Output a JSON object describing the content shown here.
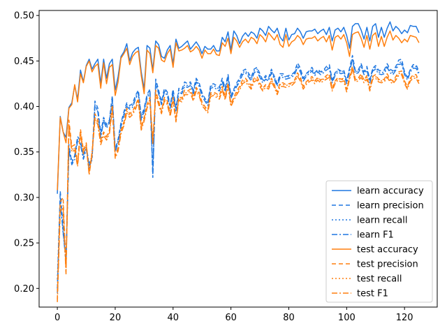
{
  "chart_data": {
    "type": "line",
    "title": "",
    "xlabel": "",
    "ylabel": "",
    "xlim": [
      -6.3,
      131.3
    ],
    "ylim": [
      0.1795,
      0.5055
    ],
    "xticks": [
      "0",
      "20",
      "40",
      "60",
      "80",
      "100",
      "120"
    ],
    "yticks": [
      "0.20",
      "0.25",
      "0.30",
      "0.35",
      "0.40",
      "0.45",
      "0.50"
    ],
    "grid": false,
    "legend_position": "lower-right",
    "x": [
      0,
      1,
      2,
      3,
      4,
      5,
      6,
      7,
      8,
      9,
      10,
      11,
      12,
      13,
      14,
      15,
      16,
      17,
      18,
      19,
      20,
      21,
      22,
      23,
      24,
      25,
      26,
      27,
      28,
      29,
      30,
      31,
      32,
      33,
      34,
      35,
      36,
      37,
      38,
      39,
      40,
      41,
      42,
      43,
      44,
      45,
      46,
      47,
      48,
      49,
      50,
      51,
      52,
      53,
      54,
      55,
      56,
      57,
      58,
      59,
      60,
      61,
      62,
      63,
      64,
      65,
      66,
      67,
      68,
      69,
      70,
      71,
      72,
      73,
      74,
      75,
      76,
      77,
      78,
      79,
      80,
      81,
      82,
      83,
      84,
      85,
      86,
      87,
      88,
      89,
      90,
      91,
      92,
      93,
      94,
      95,
      96,
      97,
      98,
      99,
      100,
      101,
      102,
      103,
      104,
      105,
      106,
      107,
      108,
      109,
      110,
      111,
      112,
      113,
      114,
      115,
      116,
      117,
      118,
      119,
      120,
      121,
      122,
      123,
      124,
      125
    ],
    "series": [
      {
        "name": "learn accuracy",
        "color": "#1f77e0",
        "dash": "solid",
        "values": [
          0.304,
          0.389,
          0.372,
          0.366,
          0.399,
          0.404,
          0.423,
          0.408,
          0.44,
          0.427,
          0.445,
          0.452,
          0.441,
          0.447,
          0.452,
          0.425,
          0.452,
          0.431,
          0.447,
          0.452,
          0.418,
          0.433,
          0.455,
          0.46,
          0.469,
          0.45,
          0.459,
          0.463,
          0.465,
          0.438,
          0.419,
          0.467,
          0.464,
          0.44,
          0.472,
          0.468,
          0.455,
          0.453,
          0.462,
          0.467,
          0.447,
          0.474,
          0.464,
          0.466,
          0.469,
          0.472,
          0.463,
          0.467,
          0.471,
          0.466,
          0.458,
          0.466,
          0.463,
          0.463,
          0.467,
          0.461,
          0.461,
          0.476,
          0.471,
          0.482,
          0.462,
          0.483,
          0.478,
          0.469,
          0.477,
          0.481,
          0.477,
          0.482,
          0.48,
          0.475,
          0.486,
          0.483,
          0.478,
          0.488,
          0.484,
          0.481,
          0.486,
          0.476,
          0.472,
          0.486,
          0.473,
          0.479,
          0.48,
          0.486,
          0.482,
          0.475,
          0.482,
          0.483,
          0.483,
          0.485,
          0.48,
          0.483,
          0.485,
          0.479,
          0.487,
          0.472,
          0.484,
          0.486,
          0.482,
          0.487,
          0.478,
          0.464,
          0.488,
          0.491,
          0.491,
          0.484,
          0.474,
          0.487,
          0.472,
          0.488,
          0.491,
          0.476,
          0.487,
          0.476,
          0.486,
          0.493,
          0.483,
          0.488,
          0.485,
          0.48,
          0.484,
          0.481,
          0.489,
          0.488,
          0.488,
          0.481
        ]
      },
      {
        "name": "learn precision",
        "color": "#1f77e0",
        "dash": "6,4",
        "values": [
          0.2,
          0.307,
          0.268,
          0.231,
          0.358,
          0.338,
          0.346,
          0.367,
          0.362,
          0.346,
          0.356,
          0.335,
          0.344,
          0.406,
          0.398,
          0.371,
          0.388,
          0.38,
          0.385,
          0.412,
          0.352,
          0.364,
          0.382,
          0.394,
          0.404,
          0.401,
          0.403,
          0.412,
          0.418,
          0.389,
          0.398,
          0.413,
          0.419,
          0.322,
          0.43,
          0.418,
          0.405,
          0.42,
          0.416,
          0.401,
          0.419,
          0.398,
          0.42,
          0.418,
          0.427,
          0.425,
          0.427,
          0.418,
          0.431,
          0.426,
          0.415,
          0.409,
          0.404,
          0.424,
          0.425,
          0.423,
          0.421,
          0.431,
          0.42,
          0.435,
          0.412,
          0.419,
          0.426,
          0.431,
          0.439,
          0.441,
          0.437,
          0.432,
          0.441,
          0.443,
          0.436,
          0.429,
          0.434,
          0.431,
          0.441,
          0.433,
          0.425,
          0.436,
          0.436,
          0.433,
          0.434,
          0.435,
          0.438,
          0.448,
          0.442,
          0.431,
          0.436,
          0.439,
          0.443,
          0.437,
          0.441,
          0.438,
          0.44,
          0.444,
          0.446,
          0.429,
          0.437,
          0.441,
          0.439,
          0.44,
          0.428,
          0.442,
          0.456,
          0.439,
          0.44,
          0.447,
          0.438,
          0.444,
          0.429,
          0.442,
          0.445,
          0.44,
          0.439,
          0.44,
          0.447,
          0.441,
          0.439,
          0.444,
          0.451,
          0.452,
          0.438,
          0.432,
          0.441,
          0.446,
          0.446,
          0.438
        ]
      },
      {
        "name": "learn recall",
        "color": "#1f77e0",
        "dash": "2,3",
        "values": [
          0.21,
          0.3,
          0.26,
          0.235,
          0.355,
          0.34,
          0.345,
          0.364,
          0.359,
          0.344,
          0.355,
          0.337,
          0.345,
          0.4,
          0.395,
          0.368,
          0.386,
          0.378,
          0.384,
          0.408,
          0.354,
          0.362,
          0.38,
          0.392,
          0.402,
          0.399,
          0.401,
          0.41,
          0.416,
          0.387,
          0.396,
          0.411,
          0.417,
          0.33,
          0.426,
          0.416,
          0.404,
          0.418,
          0.414,
          0.4,
          0.417,
          0.397,
          0.418,
          0.416,
          0.424,
          0.423,
          0.425,
          0.416,
          0.429,
          0.424,
          0.413,
          0.408,
          0.403,
          0.422,
          0.423,
          0.421,
          0.419,
          0.429,
          0.418,
          0.433,
          0.411,
          0.418,
          0.424,
          0.429,
          0.437,
          0.439,
          0.435,
          0.43,
          0.439,
          0.441,
          0.434,
          0.428,
          0.432,
          0.43,
          0.439,
          0.432,
          0.424,
          0.434,
          0.434,
          0.432,
          0.433,
          0.434,
          0.437,
          0.445,
          0.44,
          0.43,
          0.435,
          0.438,
          0.441,
          0.436,
          0.44,
          0.437,
          0.439,
          0.442,
          0.444,
          0.428,
          0.436,
          0.44,
          0.438,
          0.439,
          0.427,
          0.441,
          0.453,
          0.438,
          0.439,
          0.445,
          0.437,
          0.442,
          0.428,
          0.441,
          0.443,
          0.438,
          0.437,
          0.438,
          0.445,
          0.439,
          0.437,
          0.442,
          0.448,
          0.449,
          0.437,
          0.431,
          0.44,
          0.444,
          0.444,
          0.437
        ]
      },
      {
        "name": "learn F1",
        "color": "#1f77e0",
        "dash": "8,3,2,3",
        "values": [
          0.195,
          0.296,
          0.262,
          0.228,
          0.352,
          0.336,
          0.342,
          0.362,
          0.358,
          0.342,
          0.353,
          0.333,
          0.342,
          0.402,
          0.394,
          0.366,
          0.384,
          0.376,
          0.382,
          0.407,
          0.35,
          0.36,
          0.378,
          0.39,
          0.4,
          0.397,
          0.399,
          0.408,
          0.414,
          0.385,
          0.394,
          0.409,
          0.415,
          0.326,
          0.425,
          0.414,
          0.402,
          0.416,
          0.412,
          0.398,
          0.415,
          0.395,
          0.416,
          0.414,
          0.422,
          0.421,
          0.423,
          0.414,
          0.427,
          0.422,
          0.411,
          0.406,
          0.401,
          0.42,
          0.421,
          0.419,
          0.417,
          0.427,
          0.416,
          0.431,
          0.409,
          0.416,
          0.422,
          0.427,
          0.435,
          0.437,
          0.433,
          0.428,
          0.437,
          0.439,
          0.432,
          0.426,
          0.43,
          0.428,
          0.437,
          0.43,
          0.422,
          0.432,
          0.432,
          0.43,
          0.431,
          0.432,
          0.435,
          0.443,
          0.438,
          0.428,
          0.433,
          0.436,
          0.439,
          0.434,
          0.438,
          0.435,
          0.437,
          0.44,
          0.442,
          0.426,
          0.434,
          0.438,
          0.436,
          0.437,
          0.425,
          0.439,
          0.451,
          0.436,
          0.437,
          0.443,
          0.435,
          0.44,
          0.426,
          0.439,
          0.441,
          0.436,
          0.435,
          0.436,
          0.443,
          0.437,
          0.435,
          0.44,
          0.446,
          0.447,
          0.435,
          0.429,
          0.438,
          0.442,
          0.442,
          0.435
        ]
      },
      {
        "name": "test accuracy",
        "color": "#ff7f0e",
        "dash": "solid",
        "values": [
          0.308,
          0.388,
          0.372,
          0.36,
          0.398,
          0.402,
          0.424,
          0.405,
          0.436,
          0.426,
          0.444,
          0.45,
          0.438,
          0.444,
          0.447,
          0.42,
          0.448,
          0.425,
          0.443,
          0.446,
          0.412,
          0.427,
          0.453,
          0.458,
          0.464,
          0.446,
          0.455,
          0.459,
          0.461,
          0.434,
          0.414,
          0.462,
          0.458,
          0.437,
          0.467,
          0.464,
          0.451,
          0.449,
          0.458,
          0.463,
          0.443,
          0.47,
          0.461,
          0.462,
          0.464,
          0.467,
          0.46,
          0.462,
          0.466,
          0.462,
          0.453,
          0.462,
          0.458,
          0.458,
          0.463,
          0.457,
          0.456,
          0.47,
          0.466,
          0.475,
          0.458,
          0.476,
          0.472,
          0.465,
          0.471,
          0.474,
          0.47,
          0.476,
          0.474,
          0.469,
          0.479,
          0.476,
          0.471,
          0.481,
          0.477,
          0.473,
          0.479,
          0.468,
          0.465,
          0.479,
          0.466,
          0.471,
          0.473,
          0.478,
          0.475,
          0.468,
          0.474,
          0.475,
          0.475,
          0.477,
          0.472,
          0.475,
          0.477,
          0.471,
          0.478,
          0.462,
          0.476,
          0.478,
          0.474,
          0.479,
          0.47,
          0.455,
          0.479,
          0.481,
          0.482,
          0.475,
          0.465,
          0.478,
          0.463,
          0.478,
          0.481,
          0.466,
          0.477,
          0.466,
          0.476,
          0.483,
          0.473,
          0.478,
          0.475,
          0.47,
          0.474,
          0.471,
          0.478,
          0.477,
          0.476,
          0.47
        ]
      },
      {
        "name": "test precision",
        "color": "#ff7f0e",
        "dash": "6,4",
        "values": [
          0.188,
          0.295,
          0.3,
          0.218,
          0.385,
          0.356,
          0.358,
          0.338,
          0.375,
          0.352,
          0.36,
          0.326,
          0.35,
          0.392,
          0.385,
          0.363,
          0.372,
          0.367,
          0.374,
          0.402,
          0.345,
          0.355,
          0.374,
          0.383,
          0.398,
          0.392,
          0.395,
          0.401,
          0.409,
          0.378,
          0.388,
          0.402,
          0.41,
          0.36,
          0.418,
          0.406,
          0.395,
          0.41,
          0.406,
          0.392,
          0.41,
          0.386,
          0.411,
          0.409,
          0.418,
          0.417,
          0.419,
          0.41,
          0.421,
          0.416,
          0.405,
          0.4,
          0.396,
          0.415,
          0.416,
          0.414,
          0.412,
          0.422,
          0.411,
          0.426,
          0.403,
          0.41,
          0.417,
          0.422,
          0.429,
          0.431,
          0.427,
          0.423,
          0.431,
          0.433,
          0.426,
          0.42,
          0.424,
          0.422,
          0.431,
          0.424,
          0.416,
          0.426,
          0.426,
          0.424,
          0.425,
          0.426,
          0.429,
          0.437,
          0.432,
          0.422,
          0.427,
          0.43,
          0.433,
          0.428,
          0.432,
          0.429,
          0.431,
          0.434,
          0.436,
          0.42,
          0.428,
          0.432,
          0.43,
          0.431,
          0.419,
          0.433,
          0.444,
          0.43,
          0.431,
          0.436,
          0.429,
          0.434,
          0.42,
          0.433,
          0.435,
          0.43,
          0.429,
          0.43,
          0.436,
          0.43,
          0.428,
          0.433,
          0.438,
          0.439,
          0.428,
          0.422,
          0.431,
          0.435,
          0.435,
          0.428
        ]
      },
      {
        "name": "test recall",
        "color": "#ff7f0e",
        "dash": "2,3",
        "values": [
          0.198,
          0.29,
          0.292,
          0.224,
          0.38,
          0.352,
          0.355,
          0.336,
          0.372,
          0.35,
          0.358,
          0.328,
          0.35,
          0.388,
          0.382,
          0.36,
          0.37,
          0.365,
          0.372,
          0.398,
          0.347,
          0.353,
          0.372,
          0.381,
          0.395,
          0.39,
          0.393,
          0.399,
          0.407,
          0.376,
          0.386,
          0.4,
          0.408,
          0.362,
          0.415,
          0.404,
          0.394,
          0.408,
          0.404,
          0.391,
          0.408,
          0.385,
          0.409,
          0.407,
          0.415,
          0.415,
          0.417,
          0.408,
          0.419,
          0.414,
          0.403,
          0.399,
          0.395,
          0.413,
          0.414,
          0.412,
          0.41,
          0.42,
          0.409,
          0.424,
          0.402,
          0.409,
          0.415,
          0.42,
          0.427,
          0.429,
          0.425,
          0.421,
          0.429,
          0.431,
          0.424,
          0.419,
          0.423,
          0.421,
          0.429,
          0.423,
          0.415,
          0.424,
          0.424,
          0.423,
          0.424,
          0.425,
          0.428,
          0.435,
          0.43,
          0.421,
          0.426,
          0.429,
          0.431,
          0.427,
          0.431,
          0.428,
          0.43,
          0.432,
          0.434,
          0.419,
          0.427,
          0.431,
          0.429,
          0.43,
          0.418,
          0.432,
          0.442,
          0.429,
          0.43,
          0.434,
          0.428,
          0.432,
          0.419,
          0.432,
          0.433,
          0.429,
          0.428,
          0.429,
          0.434,
          0.429,
          0.427,
          0.431,
          0.436,
          0.437,
          0.427,
          0.421,
          0.43,
          0.433,
          0.433,
          0.427
        ]
      },
      {
        "name": "test F1",
        "color": "#ff7f0e",
        "dash": "8,3,2,3",
        "values": [
          0.185,
          0.285,
          0.288,
          0.216,
          0.378,
          0.35,
          0.352,
          0.334,
          0.37,
          0.348,
          0.356,
          0.325,
          0.347,
          0.386,
          0.38,
          0.358,
          0.368,
          0.363,
          0.37,
          0.396,
          0.343,
          0.351,
          0.37,
          0.379,
          0.393,
          0.388,
          0.391,
          0.397,
          0.405,
          0.374,
          0.384,
          0.398,
          0.406,
          0.358,
          0.413,
          0.402,
          0.392,
          0.406,
          0.402,
          0.389,
          0.406,
          0.383,
          0.407,
          0.405,
          0.413,
          0.413,
          0.415,
          0.406,
          0.417,
          0.412,
          0.401,
          0.397,
          0.393,
          0.411,
          0.412,
          0.41,
          0.408,
          0.418,
          0.407,
          0.422,
          0.4,
          0.407,
          0.413,
          0.418,
          0.425,
          0.427,
          0.423,
          0.419,
          0.427,
          0.429,
          0.422,
          0.417,
          0.421,
          0.419,
          0.427,
          0.421,
          0.413,
          0.422,
          0.422,
          0.421,
          0.422,
          0.423,
          0.426,
          0.433,
          0.428,
          0.419,
          0.424,
          0.427,
          0.429,
          0.425,
          0.429,
          0.426,
          0.428,
          0.43,
          0.432,
          0.417,
          0.425,
          0.429,
          0.427,
          0.428,
          0.416,
          0.43,
          0.44,
          0.427,
          0.428,
          0.432,
          0.426,
          0.43,
          0.417,
          0.43,
          0.431,
          0.427,
          0.426,
          0.427,
          0.432,
          0.427,
          0.425,
          0.429,
          0.434,
          0.435,
          0.425,
          0.419,
          0.428,
          0.431,
          0.431,
          0.425
        ]
      }
    ]
  }
}
